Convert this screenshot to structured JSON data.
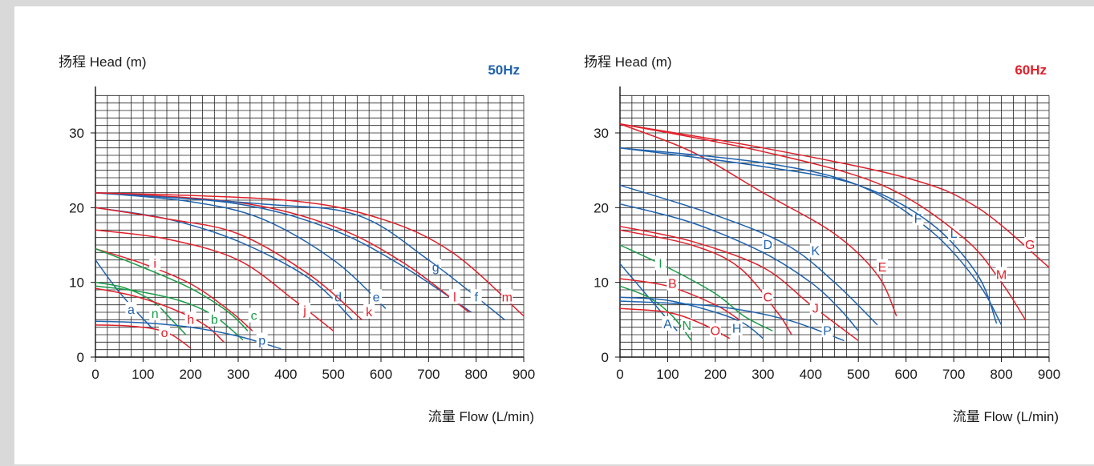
{
  "colors": {
    "red": "#e0202a",
    "blue": "#1f62ad",
    "green": "#1a9b48",
    "grid": "#222222"
  },
  "chart_data": [
    {
      "type": "line",
      "freq_label": "50Hz",
      "freq_color": "#1f62ad",
      "ylabel": "扬程 Head (m)",
      "xlabel": "流量 Flow (L/min)",
      "xlim": [
        0,
        900
      ],
      "ylim": [
        0,
        36
      ],
      "x_ticks": [
        "0",
        "100",
        "200",
        "300",
        "400",
        "500",
        "600",
        "700",
        "800",
        "900"
      ],
      "y_ticks": [
        "0",
        "10",
        "20",
        "30"
      ],
      "grid": true,
      "series": [
        {
          "name": "a",
          "color": "blue",
          "points": [
            [
              0,
              13
            ],
            [
              40,
              9.5
            ],
            [
              80,
              6.5
            ],
            [
              120,
              3.8
            ]
          ],
          "label_at": [
            75,
            6.3
          ]
        },
        {
          "name": "n",
          "color": "green",
          "points": [
            [
              0,
              10
            ],
            [
              60,
              9.3
            ],
            [
              120,
              7.5
            ],
            [
              160,
              5
            ],
            [
              190,
              3
            ]
          ],
          "label_at": [
            125,
            5.8
          ]
        },
        {
          "name": "o",
          "color": "red",
          "points": [
            [
              0,
              4.3
            ],
            [
              60,
              4.2
            ],
            [
              120,
              3.8
            ],
            [
              160,
              3
            ],
            [
              200,
              1.2
            ]
          ],
          "label_at": [
            145,
            3.2
          ]
        },
        {
          "name": "h",
          "color": "red",
          "points": [
            [
              0,
              9.2
            ],
            [
              80,
              8.2
            ],
            [
              160,
              6.5
            ],
            [
              230,
              4.3
            ],
            [
              270,
              2
            ]
          ],
          "label_at": [
            200,
            5
          ]
        },
        {
          "name": "b",
          "color": "green",
          "points": [
            [
              0,
              9.5
            ],
            [
              90,
              8.8
            ],
            [
              180,
              7.5
            ],
            [
              250,
              5.5
            ],
            [
              310,
              2.3
            ]
          ],
          "label_at": [
            250,
            5
          ]
        },
        {
          "name": "i",
          "color": "red",
          "points": [
            [
              0,
              14.5
            ],
            [
              100,
              12.5
            ],
            [
              200,
              9.8
            ],
            [
              280,
              6.3
            ],
            [
              330,
              3.5
            ]
          ],
          "label_at": [
            125,
            12.5
          ]
        },
        {
          "name": "c",
          "color": "green",
          "points": [
            [
              0,
              14.5
            ],
            [
              100,
              12
            ],
            [
              200,
              9.2
            ],
            [
              280,
              6
            ],
            [
              320,
              3.5
            ]
          ],
          "label_at": [
            333,
            5.5
          ]
        },
        {
          "name": "p",
          "color": "blue",
          "points": [
            [
              0,
              4.8
            ],
            [
              100,
              4.6
            ],
            [
              200,
              4
            ],
            [
              300,
              2.8
            ],
            [
              390,
              1.1
            ]
          ],
          "label_at": [
            350,
            2.2
          ]
        },
        {
          "name": "j",
          "color": "red",
          "points": [
            [
              0,
              17
            ],
            [
              150,
              15.8
            ],
            [
              300,
              13
            ],
            [
              420,
              7.5
            ],
            [
              500,
              3.5
            ]
          ],
          "label_at": [
            440,
            6.2
          ]
        },
        {
          "name": "d",
          "color": "blue",
          "points": [
            [
              0,
              20
            ],
            [
              150,
              18.5
            ],
            [
              300,
              15.5
            ],
            [
              450,
              10.5
            ],
            [
              540,
              5
            ]
          ],
          "label_at": [
            510,
            8
          ]
        },
        {
          "name": "k",
          "color": "red",
          "points": [
            [
              0,
              20
            ],
            [
              150,
              18.5
            ],
            [
              300,
              16.5
            ],
            [
              450,
              11
            ],
            [
              560,
              5
            ]
          ],
          "label_at": [
            575,
            6
          ]
        },
        {
          "name": "e",
          "color": "blue",
          "points": [
            [
              0,
              22
            ],
            [
              200,
              20.8
            ],
            [
              350,
              18.5
            ],
            [
              500,
              13
            ],
            [
              610,
              6.5
            ]
          ],
          "label_at": [
            590,
            8
          ]
        },
        {
          "name": "g",
          "color": "blue",
          "points": [
            [
              0,
              22
            ],
            [
              300,
              20.5
            ],
            [
              500,
              17
            ],
            [
              650,
              12
            ],
            [
              790,
              6
            ]
          ],
          "label_at": [
            715,
            12
          ]
        },
        {
          "name": "l",
          "color": "red",
          "points": [
            [
              0,
              22
            ],
            [
              300,
              20.7
            ],
            [
              500,
              17.5
            ],
            [
              650,
              12.5
            ],
            [
              785,
              6
            ]
          ],
          "label_at": [
            755,
            8
          ]
        },
        {
          "name": "f",
          "color": "blue",
          "points": [
            [
              0,
              22
            ],
            [
              350,
              20.5
            ],
            [
              550,
              19
            ],
            [
              700,
              13
            ],
            [
              860,
              5
            ]
          ],
          "label_at": [
            800,
            8
          ]
        },
        {
          "name": "m",
          "color": "red",
          "points": [
            [
              0,
              22
            ],
            [
              400,
              21
            ],
            [
              600,
              18.5
            ],
            [
              750,
              14
            ],
            [
              900,
              5.5
            ]
          ],
          "label_at": [
            865,
            8
          ]
        }
      ]
    },
    {
      "type": "line",
      "freq_label": "60Hz",
      "freq_color": "#e0202a",
      "ylabel": "扬程 Head (m)",
      "xlabel": "流量 Flow (L/min)",
      "xlim": [
        0,
        900
      ],
      "ylim": [
        0,
        36
      ],
      "x_ticks": [
        "0",
        "100",
        "200",
        "300",
        "400",
        "500",
        "600",
        "700",
        "800",
        "900"
      ],
      "y_ticks": [
        "0",
        "10",
        "20",
        "30"
      ],
      "grid": true,
      "series": [
        {
          "name": "A",
          "color": "blue",
          "points": [
            [
              0,
              12.5
            ],
            [
              40,
              9.5
            ],
            [
              80,
              6.5
            ],
            [
              120,
              3.5
            ]
          ],
          "label_at": [
            100,
            4.4
          ]
        },
        {
          "name": "N",
          "color": "green",
          "points": [
            [
              0,
              9.5
            ],
            [
              60,
              8
            ],
            [
              110,
              5.5
            ],
            [
              150,
              2.2
            ]
          ],
          "label_at": [
            140,
            4.2
          ]
        },
        {
          "name": "O",
          "color": "red",
          "points": [
            [
              0,
              6.5
            ],
            [
              100,
              6
            ],
            [
              170,
              4.5
            ],
            [
              230,
              2.5
            ]
          ],
          "label_at": [
            200,
            3.5
          ]
        },
        {
          "name": "H",
          "color": "blue",
          "points": [
            [
              0,
              8
            ],
            [
              100,
              7.6
            ],
            [
              200,
              6
            ],
            [
              260,
              4.5
            ],
            [
              300,
              2.5
            ]
          ],
          "label_at": [
            245,
            3.8
          ]
        },
        {
          "name": "B",
          "color": "red",
          "points": [
            [
              0,
              10.5
            ],
            [
              100,
              9.5
            ],
            [
              200,
              7
            ],
            [
              250,
              5
            ]
          ],
          "label_at": [
            110,
            9.8
          ]
        },
        {
          "name": "I",
          "color": "green",
          "points": [
            [
              0,
              15
            ],
            [
              100,
              12
            ],
            [
              200,
              8.5
            ],
            [
              260,
              5.5
            ],
            [
              320,
              3.5
            ]
          ],
          "label_at": [
            85,
            12.5
          ]
        },
        {
          "name": "P",
          "color": "blue",
          "points": [
            [
              0,
              7.5
            ],
            [
              200,
              6.8
            ],
            [
              350,
              5
            ],
            [
              470,
              2.2
            ]
          ],
          "label_at": [
            435,
            3.5
          ]
        },
        {
          "name": "C",
          "color": "red",
          "points": [
            [
              0,
              17
            ],
            [
              150,
              15
            ],
            [
              250,
              12
            ],
            [
              330,
              6
            ],
            [
              360,
              3
            ]
          ],
          "label_at": [
            310,
            8
          ]
        },
        {
          "name": "J",
          "color": "red",
          "points": [
            [
              0,
              17.5
            ],
            [
              150,
              15.5
            ],
            [
              300,
              12
            ],
            [
              400,
              7
            ],
            [
              500,
              2.2
            ]
          ],
          "label_at": [
            410,
            6.5
          ]
        },
        {
          "name": "D",
          "color": "blue",
          "points": [
            [
              0,
              20.5
            ],
            [
              150,
              18
            ],
            [
              300,
              14
            ],
            [
              400,
              10
            ],
            [
              460,
              6.5
            ],
            [
              500,
              3.5
            ]
          ],
          "label_at": [
            310,
            15
          ]
        },
        {
          "name": "K",
          "color": "blue",
          "points": [
            [
              0,
              23
            ],
            [
              200,
              19
            ],
            [
              350,
              15
            ],
            [
              450,
              10
            ],
            [
              540,
              4.3
            ]
          ],
          "label_at": [
            410,
            14.2
          ]
        },
        {
          "name": "E",
          "color": "red",
          "points": [
            [
              0,
              31.2
            ],
            [
              150,
              27.5
            ],
            [
              300,
              22
            ],
            [
              450,
              16.5
            ],
            [
              540,
              11
            ],
            [
              580,
              5.5
            ]
          ],
          "label_at": [
            550,
            12
          ]
        },
        {
          "name": "F",
          "color": "blue",
          "points": [
            [
              0,
              28
            ],
            [
              300,
              26
            ],
            [
              500,
              23
            ],
            [
              650,
              17
            ],
            [
              750,
              10
            ],
            [
              800,
              4.3
            ]
          ],
          "label_at": [
            625,
            18.5
          ]
        },
        {
          "name": "L",
          "color": "blue",
          "points": [
            [
              0,
              28
            ],
            [
              300,
              25.5
            ],
            [
              500,
              23
            ],
            [
              650,
              18
            ],
            [
              750,
              11
            ],
            [
              790,
              4.5
            ]
          ],
          "label_at": [
            700,
            16.5
          ]
        },
        {
          "name": "M",
          "color": "red",
          "points": [
            [
              0,
              31.2
            ],
            [
              300,
              27.5
            ],
            [
              550,
              23
            ],
            [
              720,
              16
            ],
            [
              800,
              10
            ],
            [
              850,
              5
            ]
          ],
          "label_at": [
            800,
            11
          ]
        },
        {
          "name": "G",
          "color": "red",
          "points": [
            [
              0,
              31.2
            ],
            [
              300,
              28
            ],
            [
              600,
              24
            ],
            [
              750,
              20
            ],
            [
              900,
              12
            ]
          ],
          "label_at": [
            860,
            15
          ]
        }
      ]
    }
  ]
}
